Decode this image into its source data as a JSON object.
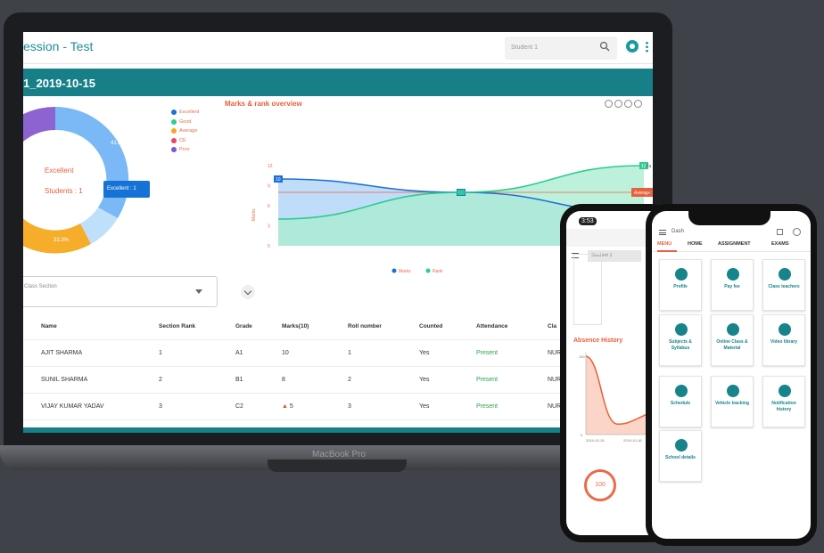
{
  "laptop": {
    "brand": "MacBook Pro",
    "app_title": "ession - Test",
    "search": {
      "placeholder": "Student 1"
    },
    "banner_title": "1_2019-10-15",
    "donut": {
      "center_line1": "Excellent",
      "center_line2": "Students : 1",
      "pct_top": "41.6%",
      "pct_bottom": "33.3%",
      "tooltip": "Excellent : 1",
      "legend": [
        {
          "label": "Excellent",
          "color": "#1e6fd6"
        },
        {
          "label": "Good",
          "color": "#2ecc8f"
        },
        {
          "label": "Average",
          "color": "#f5a623"
        },
        {
          "label": "CE",
          "color": "#e8445a"
        },
        {
          "label": "Poor",
          "color": "#7b58c9"
        }
      ]
    },
    "chart_data": {
      "type": "area",
      "title": "Marks & rank overview",
      "ylabel": "Marks",
      "ylim": [
        0,
        12
      ],
      "yticks": [
        "12",
        "9",
        "6",
        "3",
        "0"
      ],
      "x": [
        0,
        1,
        2
      ],
      "series": [
        {
          "name": "Marks",
          "color": "#1e6fd6",
          "values": [
            10,
            8,
            5
          ],
          "point_labels": [
            "10",
            "8",
            "5"
          ]
        },
        {
          "name": "Rank",
          "color": "#2ecc8f",
          "values": [
            4,
            8,
            12
          ],
          "point_labels": [
            "",
            "",
            "12"
          ]
        }
      ],
      "average": {
        "label": "Average : 8",
        "value": 8
      },
      "right_labels": [
        "Ra",
        "2"
      ]
    },
    "class_select_label": "Class Section",
    "table": {
      "headers": [
        "Name",
        "Section Rank",
        "Grade",
        "Marks(10)",
        "Roll number",
        "Counted",
        "Attendance",
        "Cla"
      ],
      "rows": [
        [
          "AJIT SHARMA",
          "1",
          "A1",
          "10",
          "1",
          "Yes",
          "Present",
          "NUR"
        ],
        [
          "SUNIL SHARMA",
          "2",
          "B1",
          "8",
          "2",
          "Yes",
          "Present",
          "NUR"
        ],
        [
          "VIJAY KUMAR YADAV",
          "3",
          "C2",
          "5",
          "3",
          "Yes",
          "Present",
          "NUR"
        ]
      ]
    }
  },
  "phone1": {
    "time": "3:53",
    "search": "Student 1",
    "history_title": "Absence History",
    "ring_value": "100",
    "x_labels": [
      "2019-10-15",
      "2019-10-16"
    ]
  },
  "phone2": {
    "title": "Dash",
    "tabs": [
      "MENU",
      "HOME",
      "ASSIGNMENT",
      "EXAMS"
    ],
    "tiles": [
      {
        "label": "Profile",
        "icon": "profile-icon"
      },
      {
        "label": "Pay fee",
        "icon": "dollar-icon"
      },
      {
        "label": "Class teachers",
        "icon": "teachers-icon"
      },
      {
        "label": "Subjects & Syllabus",
        "icon": "book-icon"
      },
      {
        "label": "Online Class & Material",
        "icon": "online-class-icon"
      },
      {
        "label": "Video library",
        "icon": "video-icon"
      },
      {
        "label": "Schedule",
        "icon": "calendar-icon"
      },
      {
        "label": "Vehicle tracking",
        "icon": "bus-icon"
      },
      {
        "label": "Notification history",
        "icon": "notification-icon"
      },
      {
        "label": "School details",
        "icon": "school-icon"
      }
    ]
  }
}
